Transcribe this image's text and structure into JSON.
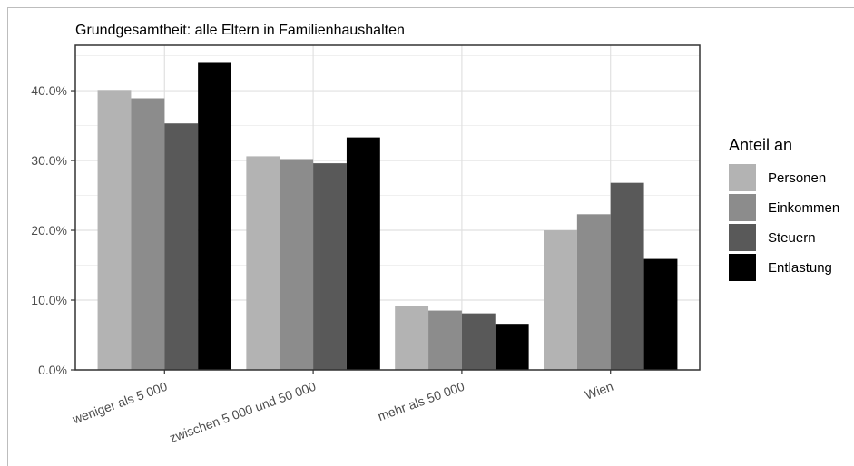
{
  "chart_data": {
    "type": "bar",
    "title": "Grundgesamtheit: alle Eltern in Familienhaushalten",
    "xlabel": "",
    "ylabel": "",
    "categories": [
      "weniger als 5 000",
      "zwischen 5 000 und 50 000",
      "mehr als 50 000",
      "Wien"
    ],
    "series": [
      {
        "name": "Personen",
        "color": "#b3b3b3",
        "values": [
          40.1,
          30.6,
          9.2,
          20.0
        ]
      },
      {
        "name": "Einkommen",
        "color": "#8c8c8c",
        "values": [
          38.9,
          30.2,
          8.5,
          22.3
        ]
      },
      {
        "name": "Steuern",
        "color": "#595959",
        "values": [
          35.3,
          29.6,
          8.1,
          26.8
        ]
      },
      {
        "name": "Entlastung",
        "color": "#000000",
        "values": [
          44.1,
          33.3,
          6.6,
          15.9
        ]
      }
    ],
    "ylim": [
      0,
      46.5
    ],
    "yticks": [
      0,
      10,
      20,
      30,
      40
    ],
    "ytick_labels": [
      "0.0%",
      "10.0%",
      "20.0%",
      "30.0%",
      "40.0%"
    ],
    "grid": true,
    "legend": {
      "title": "Anteil an",
      "position": "right"
    }
  }
}
